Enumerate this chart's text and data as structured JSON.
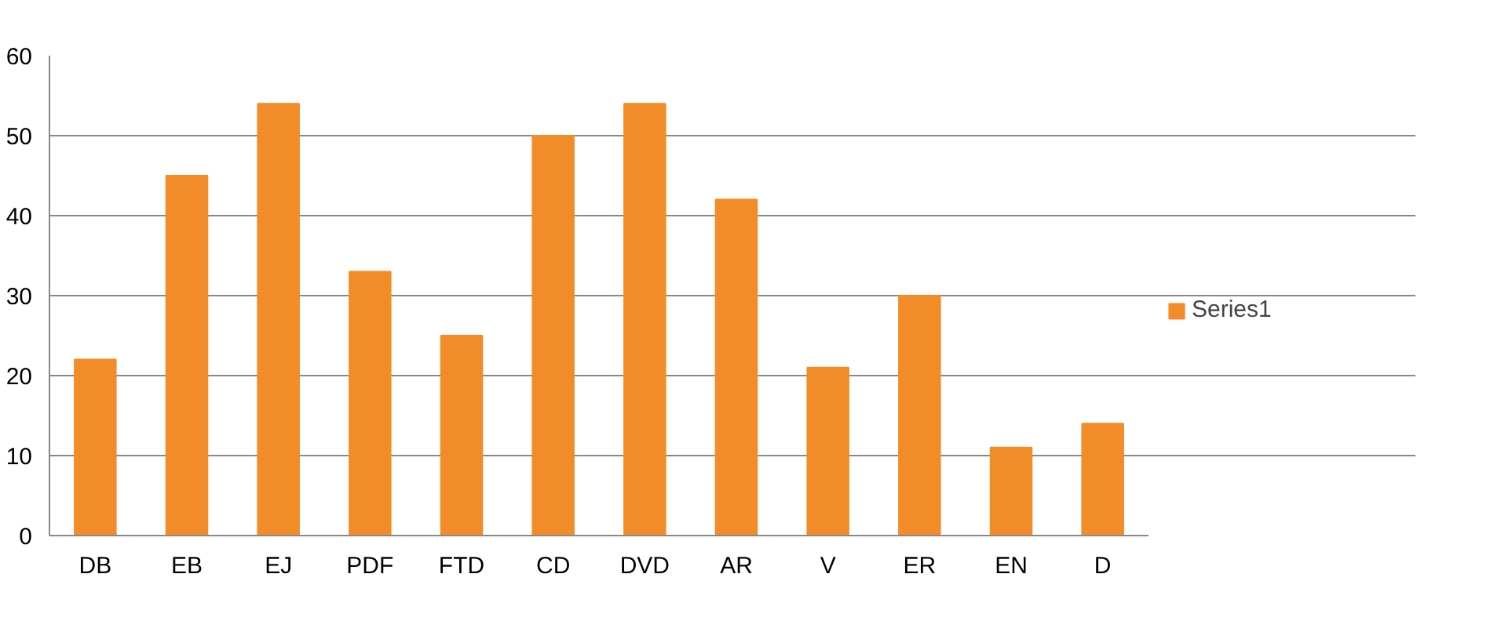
{
  "chart_data": {
    "type": "bar",
    "categories": [
      "DB",
      "EB",
      "EJ",
      "PDF",
      "FTD",
      "CD",
      "DVD",
      "AR",
      "V",
      "ER",
      "EN",
      "D"
    ],
    "series": [
      {
        "name": "Series1",
        "color": "#f28c28",
        "values": [
          22,
          45,
          54,
          33,
          25,
          50,
          54,
          42,
          21,
          30,
          11,
          14
        ]
      }
    ],
    "ylim": [
      0,
      60
    ],
    "yticks": [
      0,
      10,
      20,
      30,
      40,
      50,
      60
    ],
    "grid": "y",
    "legend": "right"
  }
}
